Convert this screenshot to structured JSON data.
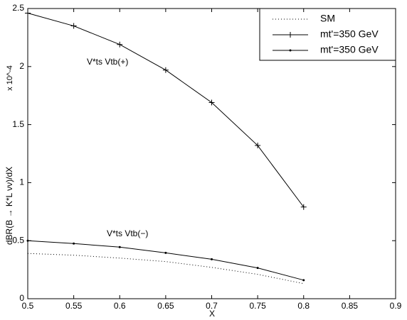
{
  "chart_data": {
    "type": "line",
    "x_label": "X",
    "y_label": "dBR(B → K*L νν)/dX",
    "y_multiplier": "x 10^-4",
    "annotations": [
      "V*ts Vtb(+)",
      "V*ts Vtb(−)"
    ],
    "x": [
      0.5,
      0.55,
      0.6,
      0.65,
      0.7,
      0.75,
      0.8
    ],
    "series": [
      {
        "name": "SM",
        "color": "#000000",
        "line_style": "dotted",
        "marker": "none",
        "values": [
          0.39,
          0.375,
          0.35,
          0.32,
          0.27,
          0.21,
          0.13
        ]
      },
      {
        "name": "mt'=350 GeV",
        "color": "#000000",
        "line_style": "solid",
        "marker": "plus",
        "values": [
          2.46,
          2.35,
          2.19,
          1.97,
          1.69,
          1.32,
          0.79
        ]
      },
      {
        "name": "mt'=350 GeV",
        "color": "#000000",
        "line_style": "solid",
        "marker": "dot",
        "values": [
          0.5,
          0.475,
          0.445,
          0.395,
          0.34,
          0.265,
          0.16
        ]
      }
    ],
    "xlim": [
      0.5,
      0.9
    ],
    "xticks": [
      0.5,
      0.55,
      0.6,
      0.65,
      0.7,
      0.75,
      0.8,
      0.85,
      0.9
    ],
    "ylim": [
      0,
      2.5
    ],
    "yticks": [
      0,
      0.5,
      1,
      1.5,
      2,
      2.5
    ],
    "grid": false,
    "legend": "top-right"
  }
}
